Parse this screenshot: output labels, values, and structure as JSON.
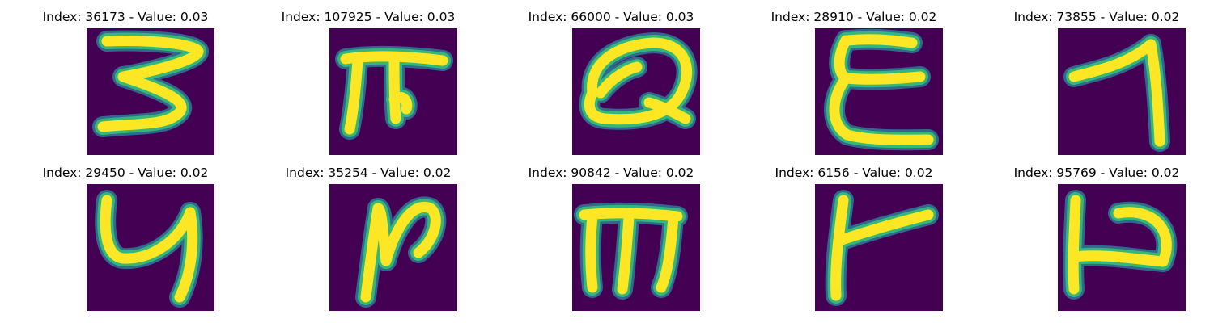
{
  "figure": {
    "background": "#ffffff",
    "colormap": [
      "#440154",
      "#31688e",
      "#35b779",
      "#fde725"
    ],
    "panels": [
      {
        "index": "36173",
        "value": "0.03",
        "title": "Index: 36173 - Value: 0.03",
        "glyph": "3"
      },
      {
        "index": "107925",
        "value": "0.03",
        "title": "Index: 107925 - Value: 0.03",
        "glyph": "rhf"
      },
      {
        "index": "66000",
        "value": "0.03",
        "title": "Index: 66000 - Value: 0.03",
        "glyph": "Q"
      },
      {
        "index": "28910",
        "value": "0.02",
        "title": "Index: 28910 - Value: 0.02",
        "glyph": "E"
      },
      {
        "index": "73855",
        "value": "0.02",
        "title": "Index: 73855 - Value: 0.02",
        "glyph": "7"
      },
      {
        "index": "29450",
        "value": "0.02",
        "title": "Index: 29450 - Value: 0.02",
        "glyph": "y"
      },
      {
        "index": "35254",
        "value": "0.02",
        "title": "Index: 35254 - Value: 0.02",
        "glyph": "N"
      },
      {
        "index": "90842",
        "value": "0.02",
        "title": "Index: 90842 - Value: 0.02",
        "glyph": "m"
      },
      {
        "index": "6156",
        "value": "0.02",
        "title": "Index: 6156 - Value: 0.02",
        "glyph": "t"
      },
      {
        "index": "95769",
        "value": "0.02",
        "title": "Index: 95769 - Value: 0.02",
        "glyph": "h"
      }
    ]
  }
}
